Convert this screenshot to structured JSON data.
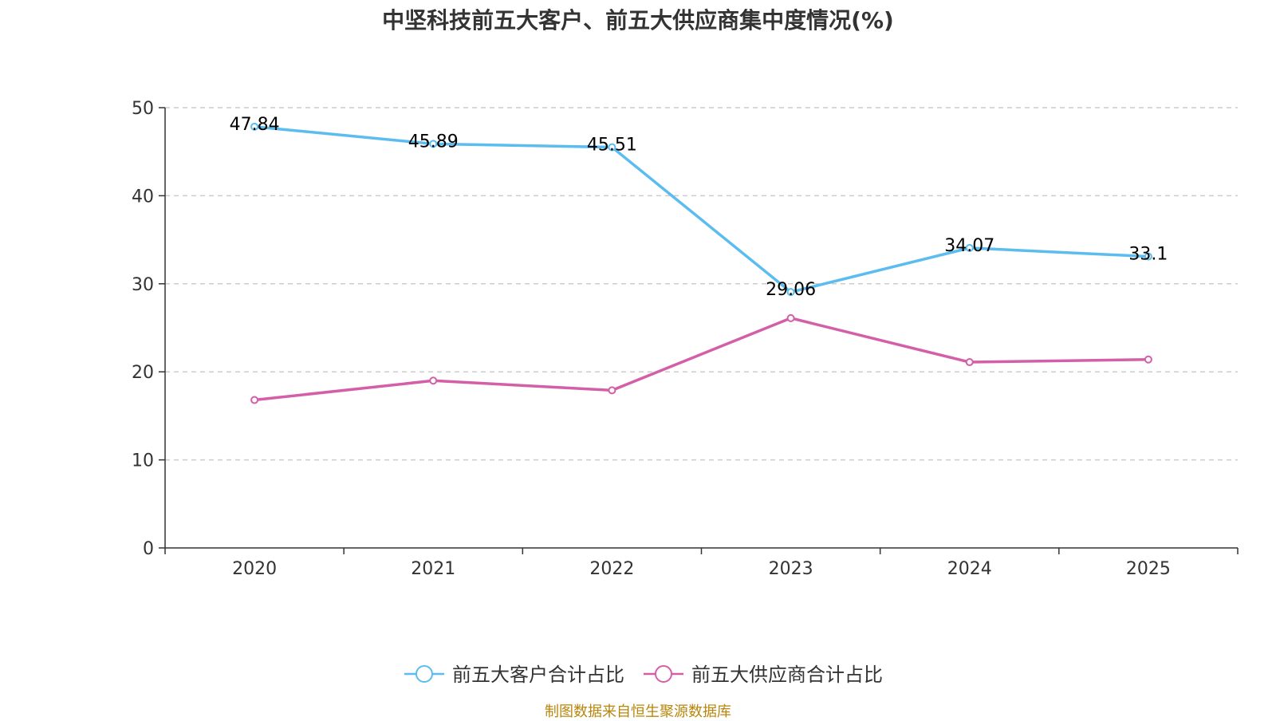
{
  "chart_data": {
    "type": "line",
    "title": "中坚科技前五大客户、前五大供应商集中度情况(%)",
    "categories": [
      "2020",
      "2021",
      "2022",
      "2023",
      "2024",
      "2025"
    ],
    "ylim": [
      0,
      50
    ],
    "yticks": [
      0,
      10,
      20,
      30,
      40,
      50
    ],
    "grid": true,
    "legend_position": "bottom",
    "series": [
      {
        "name": "前五大客户合计占比",
        "color": "#5bbcf0",
        "values": [
          47.84,
          45.89,
          45.51,
          29.06,
          34.07,
          33.1
        ],
        "labels": [
          "47.84",
          "45.89",
          "45.51",
          "29.06",
          "34.07",
          "33.1"
        ]
      },
      {
        "name": "前五大供应商合计占比",
        "color": "#d45fa8",
        "values": [
          16.8,
          19.0,
          17.9,
          26.1,
          21.1,
          21.4
        ],
        "labels": []
      }
    ]
  },
  "source": "制图数据来自恒生聚源数据库"
}
